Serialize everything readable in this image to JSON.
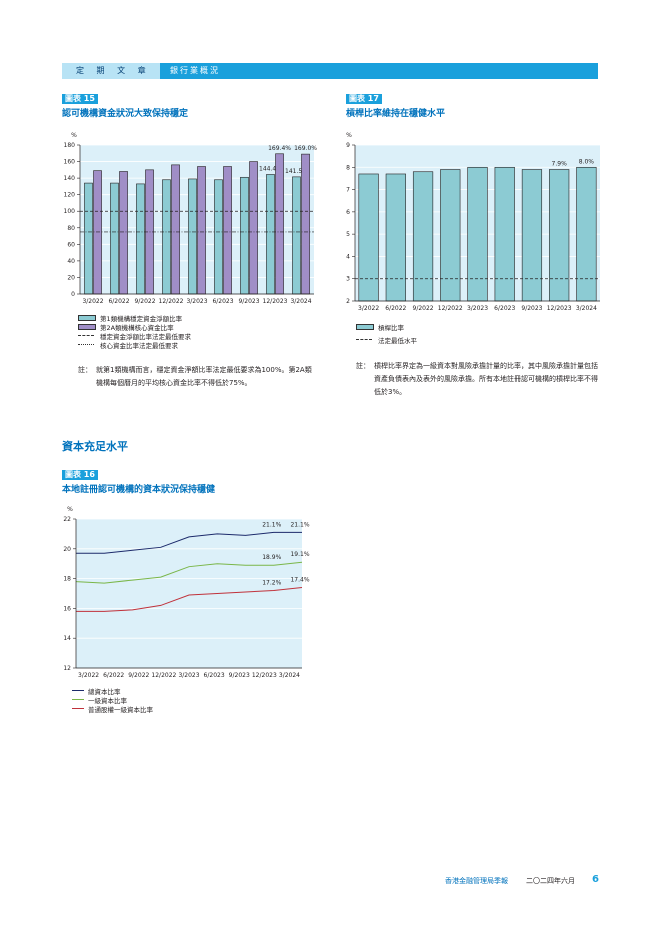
{
  "header": {
    "section": "定 期 文 章",
    "subtitle": "銀行業概況"
  },
  "chart15": {
    "badge": "圖表 15",
    "title": "認可機構資金狀況大致保持穩定",
    "unit": "%",
    "note_label": "註：",
    "note_text": "就第1類機構而言，穩定資金淨額比率法定最低要求為100%。第2A類機構每個曆月的平均核心資金比率不得低於75%。",
    "legend": [
      "第1類機構穩定資金淨額比率",
      "第2A類機構核心資金比率",
      "穩定資金淨額比率法定最低要求",
      "核心資金比率法定最低要求"
    ]
  },
  "chart17": {
    "badge": "圖表 17",
    "title": "槓桿比率維持在穩健水平",
    "unit": "%",
    "note_label": "註：",
    "note_text": "槓桿比率界定為一級資本對風險承擔計量的比率，其中風險承擔計量包括資產負債表內及表外的風險承擔。所有本地註冊認可機構的槓桿比率不得低於3%。",
    "legend": [
      "槓桿比率",
      "法定最低水平"
    ]
  },
  "section_title": "資本充足水平",
  "chart16": {
    "badge": "圖表 16",
    "title": "本地註冊認可機構的資本狀況保持穩健",
    "unit": "%",
    "legend": [
      "總資本比率",
      "一級資本比率",
      "普通股權一級資本比率"
    ]
  },
  "chart_data": [
    {
      "type": "bar",
      "ylabel": "%",
      "ylim": [
        0,
        180
      ],
      "yticks": [
        0,
        20,
        40,
        60,
        80,
        100,
        120,
        140,
        160,
        180
      ],
      "categories": [
        "3/2022",
        "6/2022",
        "9/2022",
        "12/2022",
        "3/2023",
        "6/2023",
        "9/2023",
        "12/2023",
        "3/2024"
      ],
      "series": [
        {
          "name": "第1類機構穩定資金淨額比率",
          "color": "#8ccbd3",
          "values": [
            134,
            134,
            133,
            138,
            139,
            138,
            141,
            144.4,
            141.5
          ],
          "labels": [
            "",
            "",
            "",
            "",
            "",
            "",
            "",
            "144.4%",
            "141.5%"
          ]
        },
        {
          "name": "第2A類機構核心資金比率",
          "color": "#a08ec7",
          "values": [
            149,
            148,
            150,
            156,
            154,
            154,
            160,
            169.4,
            169.0
          ],
          "labels": [
            "",
            "",
            "",
            "",
            "",
            "",
            "",
            "169.4%",
            "169.0%"
          ]
        }
      ],
      "reference_lines": [
        {
          "name": "穩定資金淨額比率法定最低要求",
          "value": 100,
          "style": "dashed"
        },
        {
          "name": "核心資金比率法定最低要求",
          "value": 75,
          "style": "dash-dot"
        }
      ],
      "grid": true
    },
    {
      "type": "bar",
      "ylabel": "%",
      "ylim": [
        2,
        9
      ],
      "yticks": [
        2,
        3,
        4,
        5,
        6,
        7,
        8,
        9
      ],
      "categories": [
        "3/2022",
        "6/2022",
        "9/2022",
        "12/2022",
        "3/2023",
        "6/2023",
        "9/2023",
        "12/2023",
        "3/2024"
      ],
      "series": [
        {
          "name": "槓桿比率",
          "color": "#8ccbd3",
          "values": [
            7.7,
            7.7,
            7.8,
            7.9,
            8.0,
            8.0,
            7.9,
            7.9,
            8.0
          ],
          "labels": [
            "",
            "",
            "",
            "",
            "",
            "",
            "",
            "7.9%",
            "8.0%"
          ]
        }
      ],
      "reference_lines": [
        {
          "name": "法定最低水平",
          "value": 3,
          "style": "dashed"
        }
      ],
      "grid": true
    },
    {
      "type": "line",
      "ylabel": "%",
      "ylim": [
        12,
        22
      ],
      "yticks": [
        12,
        14,
        16,
        18,
        20,
        22
      ],
      "categories": [
        "3/2022",
        "6/2022",
        "9/2022",
        "12/2022",
        "3/2023",
        "6/2023",
        "9/2023",
        "12/2023",
        "3/2024"
      ],
      "series": [
        {
          "name": "總資本比率",
          "color": "#1c2a6b",
          "values": [
            19.7,
            19.7,
            19.9,
            20.1,
            20.8,
            21.0,
            20.9,
            21.1,
            21.1
          ],
          "labels": [
            "",
            "",
            "",
            "",
            "",
            "",
            "",
            "21.1%",
            "21.1%"
          ]
        },
        {
          "name": "一級資本比率",
          "color": "#7ab648",
          "values": [
            17.8,
            17.7,
            17.9,
            18.1,
            18.8,
            19.0,
            18.9,
            18.9,
            19.1
          ],
          "labels": [
            "",
            "",
            "",
            "",
            "",
            "",
            "",
            "18.9%",
            "19.1%"
          ]
        },
        {
          "name": "普通股權一級資本比率",
          "color": "#c0313a",
          "values": [
            15.8,
            15.8,
            15.9,
            16.2,
            16.9,
            17.0,
            17.1,
            17.2,
            17.4
          ],
          "labels": [
            "",
            "",
            "",
            "",
            "",
            "",
            "",
            "17.2%",
            "17.4%"
          ]
        }
      ],
      "grid": true
    }
  ],
  "footer": {
    "publication": "香港金融管理局季報",
    "date": "二〇二四年六月",
    "page": "6"
  }
}
